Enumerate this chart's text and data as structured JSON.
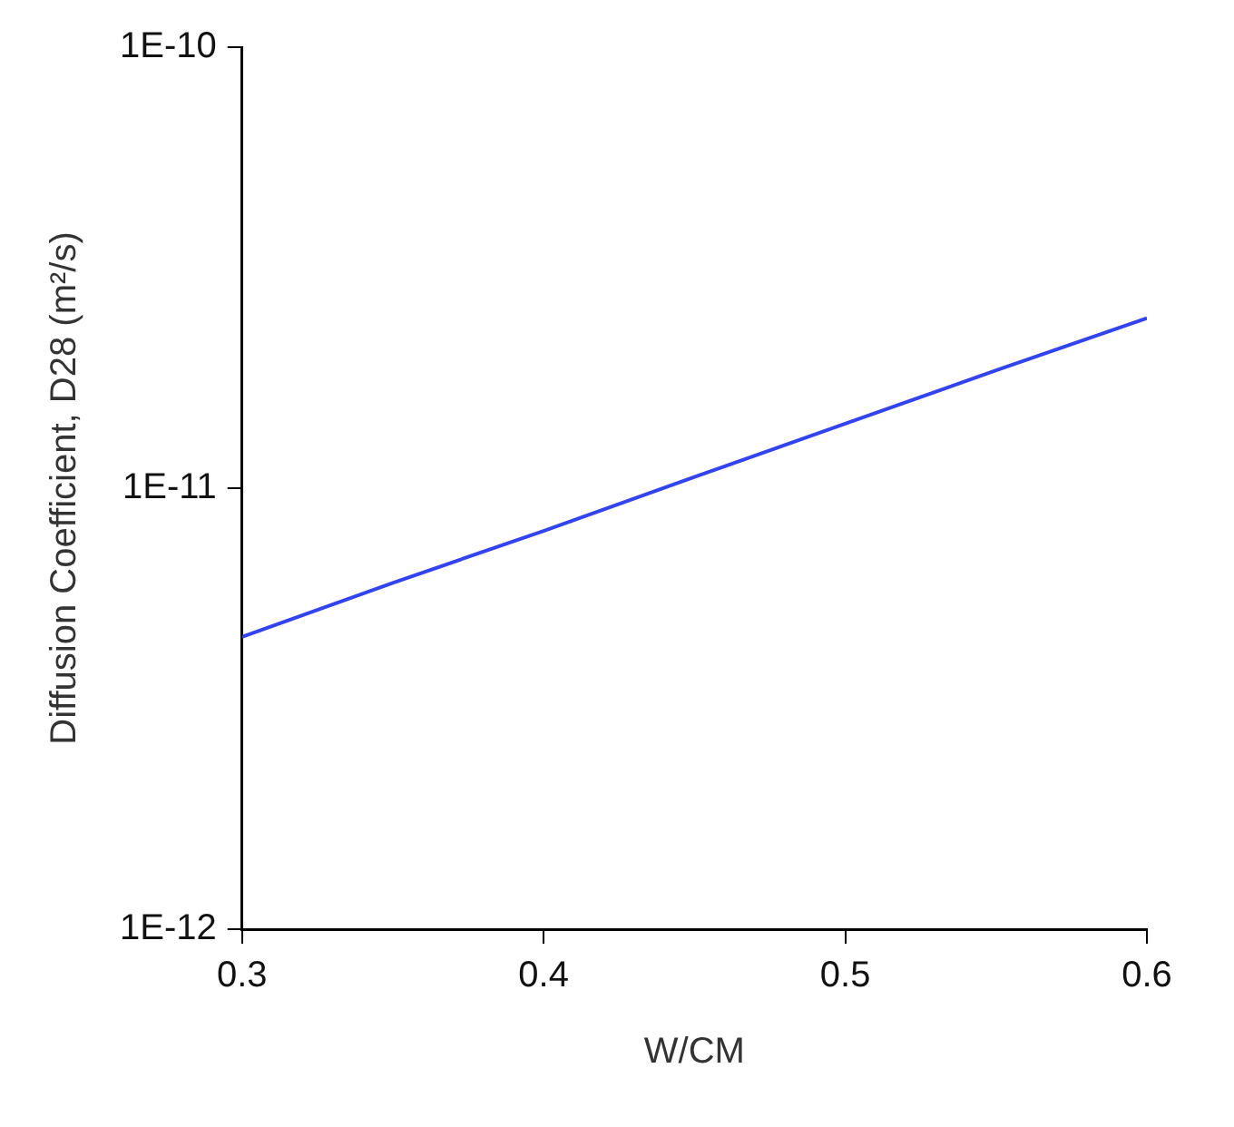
{
  "chart_data": {
    "type": "line",
    "xlabel": "W/CM",
    "ylabel": "Diffusion Coefficient, D28 (m²/s)",
    "x": [
      0.3,
      0.35,
      0.4,
      0.45,
      0.5,
      0.55,
      0.6
    ],
    "series": [
      {
        "color": "#3344ee",
        "values": [
          4.6e-12,
          6.1e-12,
          8e-12,
          1.06e-11,
          1.4e-11,
          1.85e-11,
          2.43e-11
        ]
      }
    ],
    "xlim": [
      0.3,
      0.6
    ],
    "xticks": [
      0.3,
      0.4,
      0.5,
      0.6
    ],
    "ylim": [
      1e-12,
      1e-10
    ],
    "yticks": [
      {
        "value": 1e-12,
        "label": "1E-12"
      },
      {
        "value": 1e-11,
        "label": "1E-11"
      },
      {
        "value": 1e-10,
        "label": "1E-10"
      }
    ],
    "log": "y",
    "grid": false,
    "legend": false,
    "marker": "none",
    "line_style": "solid"
  }
}
